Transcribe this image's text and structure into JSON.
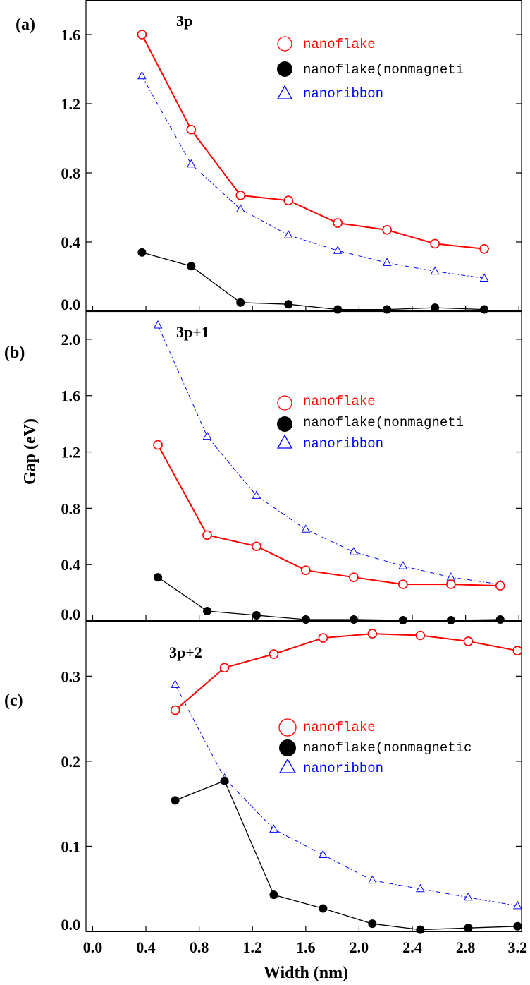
{
  "figure": {
    "xlabel": "Width (nm)",
    "ylabel": "Gap (eV)",
    "x_ticks": [
      "0.0",
      "0.4",
      "0.8",
      "1.2",
      "1.6",
      "2.0",
      "2.4",
      "2.8",
      "3.2"
    ]
  },
  "legend": {
    "nanoflake": "nanoflake",
    "nonmag_ab": "nanoflake(nonmagneti",
    "nonmag_c": "nanoflake(nonmagnetic",
    "nanoribbon": "nanoribbon"
  },
  "colors": {
    "nanoflake": "#ff0000",
    "nonmagnetic": "#000000",
    "nanoribbon": "#0000ff"
  },
  "chart_data": [
    {
      "type": "line",
      "panel": "(a)",
      "title": "3p",
      "xlim": [
        -0.05,
        3.22
      ],
      "ylim": [
        0.0,
        1.8
      ],
      "y_ticks": [
        "0.0",
        "0.4",
        "0.8",
        "1.2",
        "1.6"
      ],
      "series": [
        {
          "name": "nanoflake",
          "x": [
            0.37,
            0.74,
            1.11,
            1.47,
            1.84,
            2.21,
            2.57,
            2.94
          ],
          "y": [
            1.6,
            1.05,
            0.67,
            0.64,
            0.51,
            0.47,
            0.39,
            0.36
          ]
        },
        {
          "name": "nanoflake(nonmagnetic)",
          "x": [
            0.37,
            0.74,
            1.11,
            1.47,
            1.84,
            2.21,
            2.57,
            2.94
          ],
          "y": [
            0.34,
            0.26,
            0.05,
            0.04,
            0.01,
            0.01,
            0.02,
            0.01
          ]
        },
        {
          "name": "nanoribbon",
          "x": [
            0.37,
            0.74,
            1.11,
            1.47,
            1.84,
            2.21,
            2.57,
            2.94
          ],
          "y": [
            1.36,
            0.85,
            0.59,
            0.44,
            0.35,
            0.28,
            0.23,
            0.19
          ]
        }
      ]
    },
    {
      "type": "line",
      "panel": "(b)",
      "title": "3p+1",
      "xlim": [
        -0.05,
        3.22
      ],
      "ylim": [
        0.0,
        2.2
      ],
      "y_ticks": [
        "0.0",
        "0.4",
        "0.8",
        "1.2",
        "1.6",
        "2.0"
      ],
      "series": [
        {
          "name": "nanoflake",
          "x": [
            0.49,
            0.86,
            1.23,
            1.6,
            1.96,
            2.33,
            2.69,
            3.06
          ],
          "y": [
            1.25,
            0.61,
            0.53,
            0.36,
            0.31,
            0.26,
            0.26,
            0.25
          ]
        },
        {
          "name": "nanoflake(nonmagnetic)",
          "x": [
            0.49,
            0.86,
            1.23,
            1.6,
            1.96,
            2.33,
            2.69,
            3.06
          ],
          "y": [
            0.31,
            0.07,
            0.04,
            0.01,
            0.01,
            0.005,
            0.005,
            0.01
          ]
        },
        {
          "name": "nanoribbon",
          "x": [
            0.49,
            0.86,
            1.23,
            1.6,
            1.96,
            2.33,
            2.69,
            3.06
          ],
          "y": [
            2.1,
            1.31,
            0.89,
            0.65,
            0.49,
            0.39,
            0.31,
            0.26
          ]
        }
      ]
    },
    {
      "type": "line",
      "panel": "(c)",
      "title": "3p+2",
      "xlim": [
        -0.05,
        3.22
      ],
      "ylim": [
        0.0,
        0.365
      ],
      "y_ticks": [
        "0.0",
        "0.1",
        "0.2",
        "0.3"
      ],
      "series": [
        {
          "name": "nanoflake",
          "x": [
            0.62,
            0.99,
            1.36,
            1.73,
            2.1,
            2.46,
            2.82,
            3.19
          ],
          "y": [
            0.26,
            0.31,
            0.326,
            0.345,
            0.35,
            0.348,
            0.341,
            0.33
          ]
        },
        {
          "name": "nanoflake(nonmagnetic)",
          "x": [
            0.62,
            0.99,
            1.36,
            1.73,
            2.1,
            2.46,
            2.82,
            3.19
          ],
          "y": [
            0.154,
            0.177,
            0.043,
            0.027,
            0.009,
            0.002,
            0.004,
            0.006
          ]
        },
        {
          "name": "nanoribbon",
          "x": [
            0.62,
            0.99,
            1.36,
            1.73,
            2.1,
            2.46,
            2.82,
            3.19
          ],
          "y": [
            0.29,
            0.18,
            0.12,
            0.09,
            0.06,
            0.05,
            0.04,
            0.03
          ]
        }
      ]
    }
  ]
}
